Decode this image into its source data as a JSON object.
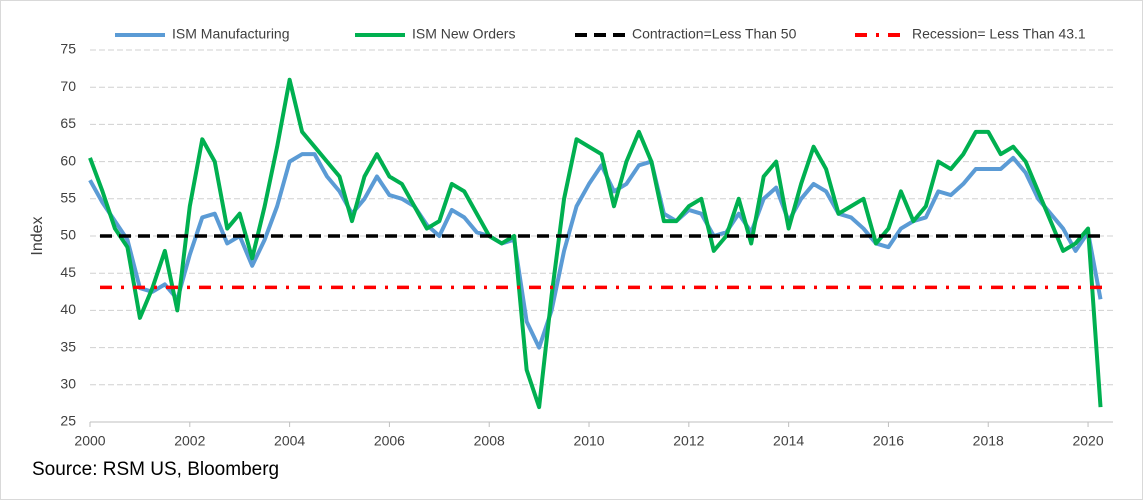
{
  "chart_data": {
    "type": "line",
    "y_label": "Index",
    "source": "Source: RSM US, Bloomberg",
    "x": [
      2000,
      2000.25,
      2000.5,
      2000.75,
      2001,
      2001.25,
      2001.5,
      2001.75,
      2002,
      2002.25,
      2002.5,
      2002.75,
      2003,
      2003.25,
      2003.5,
      2003.75,
      2004,
      2004.25,
      2004.5,
      2004.75,
      2005,
      2005.25,
      2005.5,
      2005.75,
      2006,
      2006.25,
      2006.5,
      2006.75,
      2007,
      2007.25,
      2007.5,
      2007.75,
      2008,
      2008.25,
      2008.5,
      2008.75,
      2009,
      2009.25,
      2009.5,
      2009.75,
      2010,
      2010.25,
      2010.5,
      2010.75,
      2011,
      2011.25,
      2011.5,
      2011.75,
      2012,
      2012.25,
      2012.5,
      2012.75,
      2013,
      2013.25,
      2013.5,
      2013.75,
      2014,
      2014.25,
      2014.5,
      2014.75,
      2015,
      2015.25,
      2015.5,
      2015.75,
      2016,
      2016.25,
      2016.5,
      2016.75,
      2017,
      2017.25,
      2017.5,
      2017.75,
      2018,
      2018.25,
      2018.5,
      2018.75,
      2019,
      2019.25,
      2019.5,
      2019.75,
      2020,
      2020.25
    ],
    "series": [
      {
        "name": "ISM Manufacturing",
        "color": "#5b9bd5",
        "values": [
          57.5,
          54.5,
          52,
          49.5,
          43,
          42.5,
          43.5,
          41.5,
          47.5,
          52.5,
          53,
          49,
          50,
          46,
          49.5,
          54,
          60,
          61,
          61,
          58,
          56,
          53,
          55,
          58,
          55.5,
          55,
          54,
          51.5,
          50,
          53.5,
          52.5,
          50.5,
          50,
          49,
          49.5,
          38.5,
          35,
          40,
          48,
          54,
          57,
          59.5,
          56,
          57,
          59.5,
          60,
          53,
          52,
          53.5,
          53,
          50,
          50.5,
          53,
          50.5,
          55,
          56.5,
          52,
          55,
          57,
          56,
          53,
          52.5,
          51,
          49,
          48.5,
          51,
          52,
          52.5,
          56,
          55.5,
          57,
          59,
          59,
          59,
          60.5,
          58.5,
          55,
          53,
          51,
          48,
          50.5,
          41.5
        ]
      },
      {
        "name": "ISM New Orders",
        "color": "#00b050",
        "values": [
          60.5,
          56,
          51,
          48.5,
          39,
          43,
          48,
          40,
          54,
          63,
          60,
          51,
          53,
          47,
          54,
          62,
          71,
          64,
          62,
          60,
          58,
          52,
          58,
          61,
          58,
          57,
          54,
          51,
          52,
          57,
          56,
          53,
          50,
          49,
          50,
          32,
          27,
          42,
          55,
          63,
          62,
          61,
          54,
          60,
          64,
          60,
          52,
          52,
          54,
          55,
          48,
          50,
          55,
          49,
          58,
          60,
          51,
          57,
          62,
          59,
          53,
          54,
          55,
          49,
          51,
          56,
          52,
          54,
          60,
          59,
          61,
          64,
          64,
          61,
          62,
          60,
          56,
          52,
          48,
          49,
          51,
          27
        ]
      }
    ],
    "reference_lines": [
      {
        "name": "Contraction=Less Than 50",
        "value": 50,
        "color": "#000000",
        "dash": "12,7"
      },
      {
        "name": "Recession= Less Than 43.1",
        "value": 43.1,
        "color": "#ff0000",
        "dash": "12,9,3,9"
      }
    ],
    "xlim": [
      2000,
      2020.5
    ],
    "xticks": [
      2000,
      2002,
      2004,
      2006,
      2008,
      2010,
      2012,
      2014,
      2016,
      2018,
      2020
    ],
    "ylim": [
      25,
      75
    ],
    "yticks": [
      25,
      30,
      35,
      40,
      45,
      50,
      55,
      60,
      65,
      70,
      75
    ],
    "grid": true
  }
}
